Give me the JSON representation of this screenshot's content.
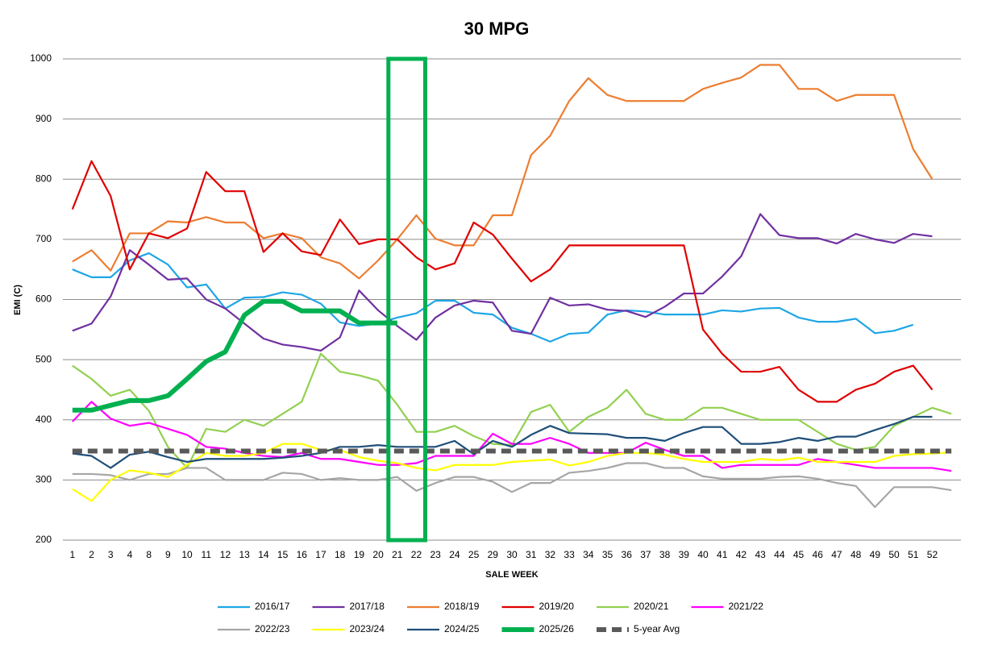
{
  "chart_data": {
    "type": "line",
    "title": "30 MPG",
    "x_label": "SALE WEEK",
    "y_label": "EMI (C)",
    "categories": [
      "1",
      "2",
      "3",
      "4",
      "8",
      "9",
      "10",
      "11",
      "12",
      "13",
      "14",
      "15",
      "16",
      "17",
      "18",
      "19",
      "20",
      "21",
      "22",
      "23",
      "24",
      "25",
      "29",
      "30",
      "31",
      "32",
      "33",
      "34",
      "35",
      "36",
      "37",
      "38",
      "39",
      "40",
      "41",
      "42",
      "43",
      "44",
      "45",
      "46",
      "47",
      "48",
      "49",
      "50",
      "51",
      "52",
      null
    ],
    "ylim": [
      200,
      1000
    ],
    "yticks": [
      200,
      300,
      400,
      500,
      600,
      700,
      800,
      900,
      1000
    ],
    "grid": true,
    "legend": "bottom",
    "series": [
      {
        "name": "2016/17",
        "color": "#1ea6e6",
        "values": [
          650,
          637,
          637,
          665,
          677,
          658,
          620,
          625,
          585,
          603,
          604,
          612,
          608,
          593,
          562,
          556,
          560,
          570,
          577,
          598,
          598,
          578,
          575,
          553,
          543,
          530,
          543,
          545,
          575,
          582,
          580,
          575,
          575,
          575,
          582,
          580,
          585,
          586,
          570,
          563,
          563,
          568,
          544,
          548,
          558,
          null,
          null
        ]
      },
      {
        "name": "2017/18",
        "color": "#7030a0",
        "values": [
          548,
          560,
          605,
          682,
          658,
          633,
          635,
          600,
          585,
          560,
          535,
          525,
          521,
          515,
          537,
          615,
          582,
          556,
          533,
          570,
          590,
          598,
          595,
          548,
          543,
          603,
          590,
          592,
          583,
          581,
          571,
          588,
          610,
          610,
          638,
          672,
          742,
          707,
          702,
          702,
          693,
          709,
          700,
          694,
          709,
          705,
          null
        ]
      },
      {
        "name": "2018/19",
        "color": "#ed7d31",
        "values": [
          663,
          682,
          648,
          710,
          710,
          730,
          728,
          737,
          728,
          728,
          702,
          710,
          702,
          670,
          660,
          635,
          665,
          700,
          740,
          701,
          690,
          690,
          740,
          740,
          840,
          872,
          930,
          968,
          940,
          930,
          930,
          930,
          930,
          950,
          960,
          969,
          990,
          990,
          950,
          950,
          930,
          940,
          940,
          940,
          850,
          800,
          null
        ]
      },
      {
        "name": "2019/20",
        "color": "#e00000",
        "values": [
          750,
          830,
          772,
          650,
          710,
          702,
          718,
          812,
          780,
          780,
          679,
          710,
          680,
          674,
          733,
          692,
          700,
          700,
          670,
          650,
          660,
          728,
          708,
          668,
          630,
          650,
          690,
          690,
          690,
          690,
          690,
          690,
          690,
          550,
          510,
          480,
          480,
          488,
          450,
          430,
          430,
          450,
          460,
          480,
          490,
          450,
          null
        ]
      },
      {
        "name": "2020/21",
        "color": "#92d050",
        "values": [
          490,
          468,
          440,
          450,
          415,
          355,
          320,
          385,
          380,
          400,
          390,
          410,
          430,
          510,
          480,
          474,
          465,
          425,
          380,
          380,
          390,
          373,
          360,
          358,
          413,
          425,
          380,
          405,
          420,
          450,
          410,
          400,
          400,
          420,
          420,
          410,
          400,
          400,
          400,
          380,
          360,
          350,
          355,
          390,
          405,
          420,
          410
        ]
      },
      {
        "name": "2021/22",
        "color": "#ff00ff",
        "values": [
          397,
          430,
          402,
          390,
          395,
          385,
          375,
          355,
          352,
          345,
          340,
          338,
          345,
          335,
          335,
          330,
          325,
          325,
          328,
          340,
          340,
          340,
          377,
          360,
          360,
          370,
          360,
          345,
          345,
          345,
          362,
          350,
          340,
          340,
          320,
          325,
          325,
          325,
          325,
          335,
          330,
          325,
          320,
          320,
          320,
          320,
          315
        ]
      },
      {
        "name": "2022/23",
        "color": "#a6a6a6",
        "values": [
          310,
          310,
          308,
          300,
          310,
          310,
          320,
          320,
          300,
          300,
          300,
          312,
          310,
          300,
          303,
          300,
          300,
          305,
          282,
          295,
          305,
          305,
          297,
          280,
          295,
          295,
          312,
          315,
          320,
          328,
          328,
          320,
          320,
          306,
          302,
          302,
          302,
          305,
          306,
          302,
          295,
          290,
          255,
          288,
          288,
          288,
          283
        ]
      },
      {
        "name": "2023/24",
        "color": "#ffff00",
        "values": [
          285,
          265,
          300,
          316,
          312,
          305,
          325,
          345,
          340,
          340,
          345,
          360,
          360,
          350,
          350,
          338,
          332,
          328,
          320,
          316,
          325,
          325,
          325,
          330,
          332,
          334,
          324,
          330,
          340,
          345,
          345,
          342,
          335,
          330,
          330,
          330,
          335,
          333,
          337,
          330,
          330,
          330,
          330,
          340,
          343,
          344,
          346
        ]
      },
      {
        "name": "2024/25",
        "color": "#1f4e79",
        "values": [
          344,
          340,
          320,
          342,
          347,
          338,
          330,
          335,
          335,
          335,
          335,
          337,
          340,
          345,
          355,
          355,
          358,
          355,
          355,
          355,
          365,
          343,
          365,
          355,
          375,
          390,
          378,
          377,
          376,
          370,
          370,
          365,
          378,
          388,
          388,
          360,
          360,
          363,
          370,
          365,
          372,
          372,
          383,
          393,
          405,
          405,
          null
        ]
      },
      {
        "name": "2025/26",
        "color": "#00b050",
        "bold": true,
        "values": [
          416,
          416,
          424,
          432,
          432,
          440,
          468,
          497,
          513,
          574,
          597,
          597,
          581,
          581,
          581,
          561,
          561,
          561,
          null,
          null,
          null,
          null,
          null,
          null,
          null,
          null,
          null,
          null,
          null,
          null,
          null,
          null,
          null,
          null,
          null,
          null,
          null,
          null,
          null,
          null,
          null,
          null,
          null,
          null,
          null,
          null,
          null
        ]
      },
      {
        "name": "5-year Avg",
        "color": "#595959",
        "dashed": true,
        "values": [
          348,
          348,
          348,
          348,
          348,
          348,
          348,
          348,
          348,
          348,
          348,
          348,
          348,
          348,
          348,
          348,
          348,
          348,
          348,
          348,
          348,
          348,
          348,
          348,
          348,
          348,
          348,
          348,
          348,
          348,
          348,
          348,
          348,
          348,
          348,
          348,
          348,
          348,
          348,
          348,
          348,
          348,
          348,
          348,
          348,
          348,
          348
        ]
      }
    ]
  }
}
